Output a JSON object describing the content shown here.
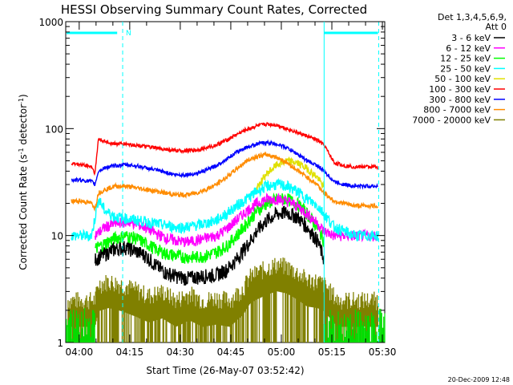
{
  "chart_data": {
    "type": "line",
    "title": "HESSI Observing Summary Count Rates, Corrected",
    "xlabel": "Start Time (26-May-07 03:52:42)",
    "ylabel": "Corrected Count Rate (s",
    "ylabel_sup1": "-1",
    "ylabel_mid": " detector",
    "ylabel_sup2": "-1",
    "ylabel_end": ")",
    "y_scale": "log",
    "ylim": [
      1,
      1000
    ],
    "xlim_minutes": [
      3.3,
      98
    ],
    "x_ticks": [
      {
        "minute": 7.3,
        "label": "04:00"
      },
      {
        "minute": 22.3,
        "label": "04:15"
      },
      {
        "minute": 37.3,
        "label": "04:30"
      },
      {
        "minute": 52.3,
        "label": "04:45"
      },
      {
        "minute": 67.3,
        "label": "05:00"
      },
      {
        "minute": 82.3,
        "label": "05:15"
      },
      {
        "minute": 97.3,
        "label": "05:30"
      }
    ],
    "y_ticks": [
      {
        "value": 1,
        "label": "1"
      },
      {
        "value": 10,
        "label": "10"
      },
      {
        "value": 100,
        "label": "100"
      },
      {
        "value": 1000,
        "label": "1000"
      }
    ],
    "legend_header": [
      "Det 1,3,4,5,6,9,",
      "Att 0"
    ],
    "legend_placement": "right",
    "annotations": {
      "night_marker": "N",
      "night_start_minute": 20,
      "night_end_minute": 80,
      "bar_end_minute": 96,
      "bar_level": 800,
      "dashed_lines_minutes": [
        20.2,
        96.2
      ],
      "solid_lines_minutes": [
        80
      ]
    },
    "series": [
      {
        "name": "3 - 6 keV",
        "color": "#000000",
        "x": [
          12,
          15,
          18,
          21,
          24,
          27,
          30,
          33,
          36,
          39,
          42,
          45,
          48,
          51,
          54,
          57,
          60,
          63,
          66,
          69,
          72,
          75,
          78,
          80
        ],
        "y": [
          6,
          6.8,
          7.5,
          7.8,
          7.2,
          6.5,
          5.3,
          4.5,
          4.2,
          4,
          4.1,
          4.2,
          4.3,
          4.8,
          6,
          8,
          11,
          14,
          16,
          16.5,
          15,
          12,
          9,
          6
        ]
      },
      {
        "name": "6 - 12 keV",
        "color": "#ff00ff",
        "x": [
          12,
          15,
          18,
          21,
          24,
          27,
          30,
          33,
          36,
          39,
          42,
          45,
          48,
          51,
          54,
          57,
          60,
          63,
          66,
          69,
          72,
          75,
          78,
          80,
          83,
          86,
          89,
          92,
          96
        ],
        "y": [
          10,
          12,
          13,
          13.5,
          13,
          12,
          10.5,
          9.5,
          9,
          8.7,
          9,
          9.5,
          10,
          11.5,
          14,
          17,
          20,
          22,
          22,
          21,
          19,
          16,
          13,
          11,
          10,
          10,
          10,
          10,
          10
        ]
      },
      {
        "name": "12 - 25 keV",
        "color": "#00ff00",
        "x": [
          12,
          15,
          18,
          21,
          24,
          27,
          30,
          33,
          36,
          39,
          42,
          45,
          48,
          51,
          54,
          57,
          60,
          63,
          66,
          69,
          72,
          75,
          78,
          80
        ],
        "y": [
          7.5,
          8.5,
          9.5,
          10,
          9.5,
          8.5,
          7.5,
          6.8,
          6.5,
          6.3,
          6.3,
          6.5,
          7,
          8,
          10,
          13,
          17,
          20,
          22,
          22,
          20,
          16,
          12,
          9
        ]
      },
      {
        "name": "25 - 50 keV",
        "color": "#00ffff",
        "x": [
          5,
          8,
          11,
          13,
          15,
          18,
          21,
          24,
          27,
          30,
          33,
          36,
          39,
          42,
          45,
          48,
          51,
          54,
          57,
          60,
          63,
          66,
          69,
          72,
          75,
          78,
          80,
          83,
          86,
          89,
          92,
          96
        ],
        "y": [
          10,
          10,
          10,
          22,
          17,
          15,
          14.5,
          14,
          13.5,
          13,
          12.5,
          12,
          12,
          12.5,
          13,
          14,
          16,
          19,
          22,
          26,
          29,
          30,
          29,
          26,
          22,
          19,
          16,
          12,
          11,
          10,
          10,
          10
        ]
      },
      {
        "name": "50 - 100 keV",
        "color": "#e0e000",
        "x": [
          60,
          63,
          66,
          69,
          72,
          75,
          78,
          80
        ],
        "y": [
          28,
          38,
          46,
          50,
          48,
          42,
          35,
          28
        ]
      },
      {
        "name": "100 - 300 keV",
        "color": "#ff0000",
        "x": [
          5,
          8,
          11,
          12,
          13,
          15,
          18,
          21,
          24,
          27,
          30,
          33,
          36,
          39,
          42,
          45,
          48,
          51,
          54,
          57,
          60,
          63,
          66,
          69,
          72,
          75,
          78,
          80,
          83,
          86,
          89,
          92,
          96
        ],
        "y": [
          47,
          46,
          44,
          38,
          80,
          75,
          72,
          72,
          70,
          68,
          66,
          64,
          62,
          62,
          63,
          66,
          70,
          78,
          88,
          98,
          106,
          110,
          108,
          100,
          92,
          85,
          78,
          70,
          48,
          45,
          44,
          44,
          44
        ]
      },
      {
        "name": "300 - 800 keV",
        "color": "#0000ff",
        "x": [
          5,
          8,
          11,
          12,
          13,
          15,
          18,
          21,
          24,
          27,
          30,
          33,
          36,
          39,
          42,
          45,
          48,
          51,
          54,
          57,
          60,
          63,
          66,
          69,
          72,
          75,
          78,
          80,
          83,
          86,
          89,
          92,
          96
        ],
        "y": [
          33,
          33,
          32,
          30,
          40,
          43,
          45,
          46,
          45,
          43,
          41,
          39,
          37,
          37,
          38,
          41,
          45,
          52,
          60,
          67,
          72,
          74,
          72,
          66,
          58,
          50,
          45,
          40,
          32,
          30,
          29,
          29,
          29
        ]
      },
      {
        "name": "800 - 7000 keV",
        "color": "#ff8c00",
        "x": [
          5,
          8,
          11,
          12,
          13,
          15,
          18,
          21,
          24,
          27,
          30,
          33,
          36,
          39,
          42,
          45,
          48,
          51,
          54,
          57,
          60,
          63,
          66,
          69,
          72,
          75,
          78,
          80,
          83,
          86,
          89,
          92,
          96
        ],
        "y": [
          21,
          21,
          20,
          18,
          25,
          27,
          29,
          29,
          28,
          27,
          26,
          25,
          24,
          24,
          25,
          27,
          30,
          35,
          42,
          50,
          55,
          57,
          54,
          48,
          41,
          35,
          30,
          25,
          21,
          20,
          19,
          19,
          19
        ]
      },
      {
        "name": "7000 - 20000 keV",
        "color": "#808000",
        "x": [
          4,
          8,
          12,
          13,
          16,
          20,
          24,
          28,
          32,
          36,
          40,
          44,
          48,
          52,
          56,
          58,
          60,
          63,
          66,
          69,
          72,
          75,
          78,
          80,
          84,
          88,
          92,
          96
        ],
        "y": [
          2,
          2,
          2,
          2.8,
          3,
          2.8,
          2.5,
          2.2,
          2.4,
          2,
          2.3,
          2,
          2.1,
          2,
          2.6,
          3.3,
          3.6,
          4,
          4.3,
          4.1,
          3.6,
          3.1,
          3,
          2.8,
          2,
          2,
          2,
          2
        ]
      }
    ]
  },
  "timestamp": "20-Dec-2009 12:48"
}
